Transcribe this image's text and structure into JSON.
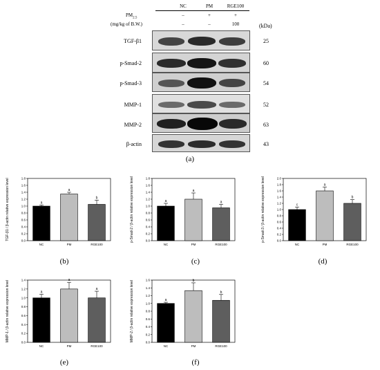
{
  "western_blot": {
    "groups": [
      "NC",
      "PM",
      "RGE100"
    ],
    "treatment_rows": [
      {
        "label": "PM2.5",
        "values": [
          "–",
          "+",
          "+"
        ]
      },
      {
        "label": "(mg/kg of B.W.)",
        "values": [
          "–",
          "–",
          "100"
        ]
      }
    ],
    "kda_header": "(kDa)",
    "proteins": [
      {
        "name": "TGF-β1",
        "kda": "25"
      },
      {
        "name": "p-Smad-2",
        "kda": "60"
      },
      {
        "name": "p-Smad-3",
        "kda": "54"
      },
      {
        "name": "MMP-1",
        "kda": "52"
      },
      {
        "name": "MMP-2",
        "kda": "63"
      },
      {
        "name": "β-actin",
        "kda": "43"
      }
    ],
    "caption": "(a)"
  },
  "chart_data": [
    {
      "type": "bar",
      "panel": "(b)",
      "categories": [
        "NC",
        "PM",
        "RGE100"
      ],
      "values": [
        1.0,
        1.35,
        1.05
      ],
      "errors": [
        0.03,
        0.05,
        0.12
      ],
      "letters": [
        "a",
        "a",
        "b"
      ],
      "ylabel": "TGF-β1 / β-actin relative expression level",
      "ylim": [
        0,
        1.8
      ],
      "yticks": [
        "0.0",
        "0.2",
        "0.4",
        "0.6",
        "0.8",
        "1.0",
        "1.2",
        "1.4",
        "1.6",
        "1.8"
      ],
      "colors": [
        "#000000",
        "#bdbdbd",
        "#5e5e5e"
      ]
    },
    {
      "type": "bar",
      "panel": "(c)",
      "categories": [
        "NC",
        "PM",
        "RGE100"
      ],
      "values": [
        1.0,
        1.2,
        0.95
      ],
      "errors": [
        0.08,
        0.18,
        0.1
      ],
      "letters": [
        "a",
        "a",
        "a"
      ],
      "ylabel": "p-Smad-2 / β-actin relative expression level",
      "ylim": [
        0,
        1.8
      ],
      "yticks": [
        "0.0",
        "0.2",
        "0.4",
        "0.6",
        "0.8",
        "1.0",
        "1.2",
        "1.4",
        "1.6",
        "1.8"
      ],
      "colors": [
        "#000000",
        "#bdbdbd",
        "#5e5e5e"
      ]
    },
    {
      "type": "bar",
      "panel": "(d)",
      "categories": [
        "NC",
        "PM",
        "RGE100"
      ],
      "values": [
        1.0,
        1.6,
        1.2
      ],
      "errors": [
        0.08,
        0.12,
        0.12
      ],
      "letters": [
        "c",
        "a",
        "b"
      ],
      "ylabel": "p-Smad-3 / β-actin relative expression level",
      "ylim": [
        0,
        2.0
      ],
      "yticks": [
        "0.0",
        "0.2",
        "0.4",
        "0.6",
        "0.8",
        "1.0",
        "1.2",
        "1.4",
        "1.6",
        "1.8",
        "2.0"
      ],
      "colors": [
        "#000000",
        "#bdbdbd",
        "#5e5e5e"
      ]
    },
    {
      "type": "bar",
      "panel": "(e)",
      "categories": [
        "NC",
        "PM",
        "RGE100"
      ],
      "values": [
        1.0,
        1.2,
        1.0
      ],
      "errors": [
        0.08,
        0.15,
        0.15
      ],
      "letters": [
        "a",
        "a",
        "a"
      ],
      "ylabel": "MMP-1 / β-actin relative expression level",
      "ylim": [
        0,
        1.4
      ],
      "yticks": [
        "0.0",
        "0.2",
        "0.4",
        "0.6",
        "0.8",
        "1.0",
        "1.2",
        "1.4"
      ],
      "colors": [
        "#000000",
        "#bdbdbd",
        "#5e5e5e"
      ]
    },
    {
      "type": "bar",
      "panel": "(f)",
      "categories": [
        "NC",
        "PM",
        "RGE100"
      ],
      "values": [
        1.0,
        1.33,
        1.08
      ],
      "errors": [
        0.03,
        0.2,
        0.15
      ],
      "letters": [
        "a",
        "b",
        "b"
      ],
      "ylabel": "MMP-2 / β-actin relative expression level",
      "ylim": [
        0,
        1.6
      ],
      "yticks": [
        "0.0",
        "0.2",
        "0.4",
        "0.6",
        "0.8",
        "1.0",
        "1.2",
        "1.4",
        "1.6"
      ],
      "colors": [
        "#000000",
        "#bdbdbd",
        "#5e5e5e"
      ]
    }
  ]
}
